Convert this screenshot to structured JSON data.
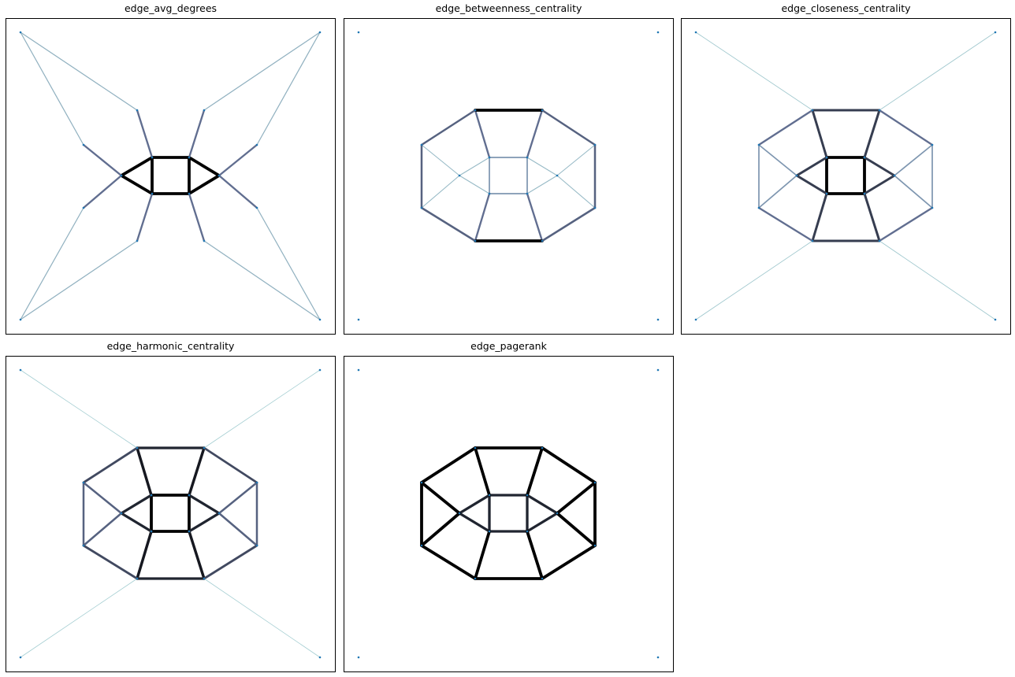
{
  "panels": [
    {
      "title": "edge_avg_degrees",
      "layout": "star",
      "edges": [
        {
          "a": 0,
          "b": 1,
          "w": 1.0
        },
        {
          "a": 1,
          "b": 2,
          "w": 1.0
        },
        {
          "a": 2,
          "b": 3,
          "w": 1.0
        },
        {
          "a": 3,
          "b": 0,
          "w": 1.0
        },
        {
          "a": 0,
          "b": 4,
          "w": 1.0
        },
        {
          "a": 3,
          "b": 4,
          "w": 1.0
        },
        {
          "a": 1,
          "b": 5,
          "w": 1.0
        },
        {
          "a": 2,
          "b": 5,
          "w": 1.0
        },
        {
          "a": 0,
          "b": 6,
          "w": 0.55
        },
        {
          "a": 1,
          "b": 7,
          "w": 0.55
        },
        {
          "a": 2,
          "b": 8,
          "w": 0.55
        },
        {
          "a": 3,
          "b": 9,
          "w": 0.55
        },
        {
          "a": 4,
          "b": 10,
          "w": 0.55
        },
        {
          "a": 4,
          "b": 11,
          "w": 0.55
        },
        {
          "a": 5,
          "b": 12,
          "w": 0.55
        },
        {
          "a": 5,
          "b": 13,
          "w": 0.55
        },
        {
          "a": 6,
          "b": 14,
          "w": 0.2
        },
        {
          "a": 10,
          "b": 14,
          "w": 0.2
        },
        {
          "a": 7,
          "b": 15,
          "w": 0.2
        },
        {
          "a": 12,
          "b": 15,
          "w": 0.2
        },
        {
          "a": 8,
          "b": 17,
          "w": 0.2
        },
        {
          "a": 13,
          "b": 17,
          "w": 0.2
        },
        {
          "a": 9,
          "b": 16,
          "w": 0.2
        },
        {
          "a": 11,
          "b": 16,
          "w": 0.2
        }
      ]
    },
    {
      "title": "edge_betweenness_centrality",
      "layout": "ring",
      "edges": [
        {
          "a": 0,
          "b": 1,
          "w": 0.35
        },
        {
          "a": 1,
          "b": 2,
          "w": 0.35
        },
        {
          "a": 2,
          "b": 3,
          "w": 0.35
        },
        {
          "a": 3,
          "b": 0,
          "w": 0.35
        },
        {
          "a": 0,
          "b": 4,
          "w": 0.15
        },
        {
          "a": 3,
          "b": 4,
          "w": 0.15
        },
        {
          "a": 1,
          "b": 5,
          "w": 0.15
        },
        {
          "a": 2,
          "b": 5,
          "w": 0.15
        },
        {
          "a": 0,
          "b": 6,
          "w": 0.55
        },
        {
          "a": 1,
          "b": 7,
          "w": 0.55
        },
        {
          "a": 2,
          "b": 8,
          "w": 0.55
        },
        {
          "a": 3,
          "b": 9,
          "w": 0.55
        },
        {
          "a": 4,
          "b": 10,
          "w": 0.15
        },
        {
          "a": 4,
          "b": 11,
          "w": 0.15
        },
        {
          "a": 5,
          "b": 12,
          "w": 0.15
        },
        {
          "a": 5,
          "b": 13,
          "w": 0.15
        },
        {
          "a": 6,
          "b": 7,
          "w": 1.0
        },
        {
          "a": 9,
          "b": 8,
          "w": 1.0
        },
        {
          "a": 6,
          "b": 10,
          "w": 0.6
        },
        {
          "a": 10,
          "b": 11,
          "w": 0.6
        },
        {
          "a": 11,
          "b": 9,
          "w": 0.6
        },
        {
          "a": 7,
          "b": 12,
          "w": 0.6
        },
        {
          "a": 12,
          "b": 13,
          "w": 0.6
        },
        {
          "a": 13,
          "b": 8,
          "w": 0.6
        }
      ]
    },
    {
      "title": "edge_closeness_centrality",
      "layout": "ring",
      "edges": [
        {
          "a": 0,
          "b": 1,
          "w": 1.0
        },
        {
          "a": 1,
          "b": 2,
          "w": 1.0
        },
        {
          "a": 2,
          "b": 3,
          "w": 1.0
        },
        {
          "a": 3,
          "b": 0,
          "w": 1.0
        },
        {
          "a": 0,
          "b": 4,
          "w": 0.75
        },
        {
          "a": 3,
          "b": 4,
          "w": 0.75
        },
        {
          "a": 1,
          "b": 5,
          "w": 0.75
        },
        {
          "a": 2,
          "b": 5,
          "w": 0.75
        },
        {
          "a": 0,
          "b": 6,
          "w": 0.75
        },
        {
          "a": 1,
          "b": 7,
          "w": 0.75
        },
        {
          "a": 2,
          "b": 8,
          "w": 0.75
        },
        {
          "a": 3,
          "b": 9,
          "w": 0.75
        },
        {
          "a": 4,
          "b": 10,
          "w": 0.35
        },
        {
          "a": 4,
          "b": 11,
          "w": 0.35
        },
        {
          "a": 5,
          "b": 12,
          "w": 0.35
        },
        {
          "a": 5,
          "b": 13,
          "w": 0.35
        },
        {
          "a": 6,
          "b": 7,
          "w": 0.75
        },
        {
          "a": 9,
          "b": 8,
          "w": 0.75
        },
        {
          "a": 6,
          "b": 10,
          "w": 0.55
        },
        {
          "a": 10,
          "b": 11,
          "w": 0.35
        },
        {
          "a": 11,
          "b": 9,
          "w": 0.55
        },
        {
          "a": 7,
          "b": 12,
          "w": 0.55
        },
        {
          "a": 12,
          "b": 13,
          "w": 0.35
        },
        {
          "a": 13,
          "b": 8,
          "w": 0.55
        },
        {
          "a": 6,
          "b": 14,
          "w": 0.08
        },
        {
          "a": 7,
          "b": 15,
          "w": 0.08
        },
        {
          "a": 8,
          "b": 17,
          "w": 0.08
        },
        {
          "a": 9,
          "b": 16,
          "w": 0.08
        }
      ]
    },
    {
      "title": "edge_harmonic_centrality",
      "layout": "ring",
      "edges": [
        {
          "a": 0,
          "b": 1,
          "w": 1.0
        },
        {
          "a": 1,
          "b": 2,
          "w": 1.0
        },
        {
          "a": 2,
          "b": 3,
          "w": 1.0
        },
        {
          "a": 3,
          "b": 0,
          "w": 1.0
        },
        {
          "a": 0,
          "b": 4,
          "w": 0.85
        },
        {
          "a": 3,
          "b": 4,
          "w": 0.85
        },
        {
          "a": 1,
          "b": 5,
          "w": 0.85
        },
        {
          "a": 2,
          "b": 5,
          "w": 0.85
        },
        {
          "a": 0,
          "b": 6,
          "w": 0.9
        },
        {
          "a": 1,
          "b": 7,
          "w": 0.9
        },
        {
          "a": 2,
          "b": 8,
          "w": 0.9
        },
        {
          "a": 3,
          "b": 9,
          "w": 0.9
        },
        {
          "a": 4,
          "b": 10,
          "w": 0.6
        },
        {
          "a": 4,
          "b": 11,
          "w": 0.6
        },
        {
          "a": 5,
          "b": 12,
          "w": 0.6
        },
        {
          "a": 5,
          "b": 13,
          "w": 0.6
        },
        {
          "a": 6,
          "b": 7,
          "w": 0.85
        },
        {
          "a": 9,
          "b": 8,
          "w": 0.85
        },
        {
          "a": 6,
          "b": 10,
          "w": 0.7
        },
        {
          "a": 10,
          "b": 11,
          "w": 0.6
        },
        {
          "a": 11,
          "b": 9,
          "w": 0.7
        },
        {
          "a": 7,
          "b": 12,
          "w": 0.7
        },
        {
          "a": 12,
          "b": 13,
          "w": 0.6
        },
        {
          "a": 13,
          "b": 8,
          "w": 0.7
        },
        {
          "a": 6,
          "b": 14,
          "w": 0.05
        },
        {
          "a": 7,
          "b": 15,
          "w": 0.05
        },
        {
          "a": 8,
          "b": 17,
          "w": 0.05
        },
        {
          "a": 9,
          "b": 16,
          "w": 0.05
        }
      ]
    },
    {
      "title": "edge_pagerank",
      "layout": "ring",
      "edges": [
        {
          "a": 0,
          "b": 1,
          "w": 0.85
        },
        {
          "a": 1,
          "b": 2,
          "w": 0.85
        },
        {
          "a": 2,
          "b": 3,
          "w": 0.85
        },
        {
          "a": 3,
          "b": 0,
          "w": 0.85
        },
        {
          "a": 0,
          "b": 4,
          "w": 0.85
        },
        {
          "a": 3,
          "b": 4,
          "w": 0.85
        },
        {
          "a": 1,
          "b": 5,
          "w": 0.85
        },
        {
          "a": 2,
          "b": 5,
          "w": 0.85
        },
        {
          "a": 0,
          "b": 6,
          "w": 1.0
        },
        {
          "a": 1,
          "b": 7,
          "w": 1.0
        },
        {
          "a": 2,
          "b": 8,
          "w": 1.0
        },
        {
          "a": 3,
          "b": 9,
          "w": 1.0
        },
        {
          "a": 4,
          "b": 10,
          "w": 1.0
        },
        {
          "a": 4,
          "b": 11,
          "w": 1.0
        },
        {
          "a": 5,
          "b": 12,
          "w": 1.0
        },
        {
          "a": 5,
          "b": 13,
          "w": 1.0
        },
        {
          "a": 6,
          "b": 7,
          "w": 1.0
        },
        {
          "a": 9,
          "b": 8,
          "w": 1.0
        },
        {
          "a": 6,
          "b": 10,
          "w": 1.0
        },
        {
          "a": 10,
          "b": 11,
          "w": 1.0
        },
        {
          "a": 11,
          "b": 9,
          "w": 1.0
        },
        {
          "a": 7,
          "b": 12,
          "w": 1.0
        },
        {
          "a": 12,
          "b": 13,
          "w": 1.0
        },
        {
          "a": 13,
          "b": 8,
          "w": 1.0
        }
      ]
    }
  ],
  "colors": {
    "node": "#1f77b4",
    "edge_low": "#a9d6d6",
    "edge_mid": "#6c7aa0",
    "edge_high": "#000000",
    "frame": "#000000"
  }
}
